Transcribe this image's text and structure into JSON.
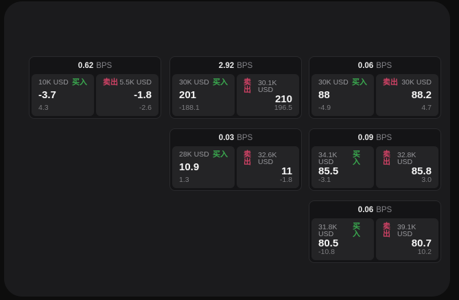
{
  "labels": {
    "bps_unit": "BPS",
    "buy_tag": "买入",
    "sell_tag": "卖出"
  },
  "colors": {
    "background": "#0d0d0d",
    "panel": "#1b1b1d",
    "card": "#141416",
    "subcard": "#242426",
    "buy_green": "#3aa94f",
    "sell_red": "#d04265"
  },
  "cards": [
    {
      "bps": "0.62",
      "buy": {
        "amount": "10K USD",
        "value": "-3.7",
        "secondary": "4.3"
      },
      "sell": {
        "amount": "5.5K USD",
        "value": "-1.8",
        "secondary": "-2.6"
      }
    },
    {
      "bps": "2.92",
      "buy": {
        "amount": "30K USD",
        "value": "201",
        "secondary": "-188.1"
      },
      "sell": {
        "amount": "30.1K USD",
        "value": "210",
        "secondary": "196.5"
      }
    },
    {
      "bps": "0.06",
      "buy": {
        "amount": "30K USD",
        "value": "88",
        "secondary": "-4.9"
      },
      "sell": {
        "amount": "30K USD",
        "value": "88.2",
        "secondary": "4.7"
      }
    },
    {
      "bps": "0.03",
      "buy": {
        "amount": "28K USD",
        "value": "10.9",
        "secondary": "1.3"
      },
      "sell": {
        "amount": "32.6K USD",
        "value": "11",
        "secondary": "-1.8"
      }
    },
    {
      "bps": "0.09",
      "buy": {
        "amount": "34.1K USD",
        "value": "85.5",
        "secondary": "-3.1"
      },
      "sell": {
        "amount": "32.8K USD",
        "value": "85.8",
        "secondary": "3.0"
      }
    },
    {
      "bps": "0.06",
      "buy": {
        "amount": "31.8K USD",
        "value": "80.5",
        "secondary": "-10.8"
      },
      "sell": {
        "amount": "39.1K USD",
        "value": "80.7",
        "secondary": "10.2"
      }
    }
  ]
}
